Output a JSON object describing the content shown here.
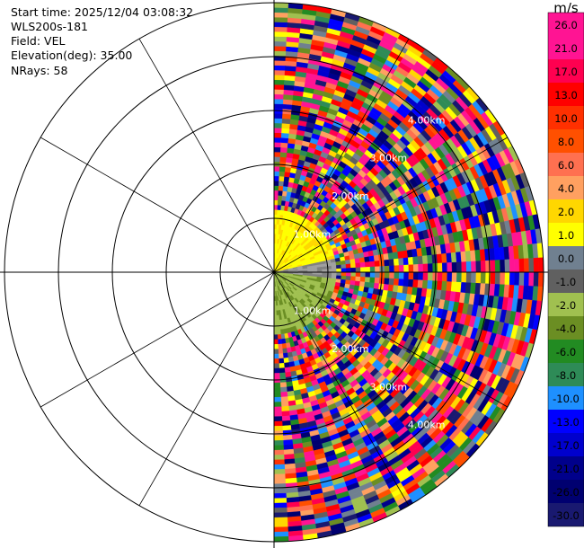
{
  "header": {
    "start_time": "Start time: 2025/12/04 03:08:32",
    "instrument": "WLS200s-181",
    "field": "Field: VEL",
    "elevation": "Elevation(deg): 35.00",
    "nrays": "NRays: 58"
  },
  "chart_data": {
    "type": "polar-ppi",
    "field": "VEL",
    "units": "m/s",
    "n_rays": 58,
    "elevation_deg": 35.0,
    "azimuth_coverage_deg": [
      0,
      180
    ],
    "max_range_km": 5.0,
    "range_ring_labels": [
      "1.00km",
      "2.00km",
      "3.00km",
      "4.00km"
    ],
    "colorbar": {
      "unit_label": "m/s",
      "tick_labels": [
        "26.0",
        "21.0",
        "17.0",
        "13.0",
        "10.0",
        "8.0",
        "6.0",
        "4.0",
        "2.0",
        "1.0",
        "0.0",
        "-1.0",
        "-2.0",
        "-4.0",
        "-6.0",
        "-8.0",
        "-10.0",
        "-13.0",
        "-17.0",
        "-21.0",
        "-26.0",
        "-30.0"
      ],
      "colors": [
        "#ff1493",
        "#ff1493",
        "#ff0050",
        "#ff0000",
        "#ff3000",
        "#ff5000",
        "#ff7050",
        "#ffa060",
        "#ffd700",
        "#ffff00",
        "#708090",
        "#606060",
        "#a0c050",
        "#6b8e23",
        "#228b22",
        "#2e8b57",
        "#1e90ff",
        "#0000ff",
        "#0000cd",
        "#00008b",
        "#000070",
        "#191970"
      ]
    }
  }
}
